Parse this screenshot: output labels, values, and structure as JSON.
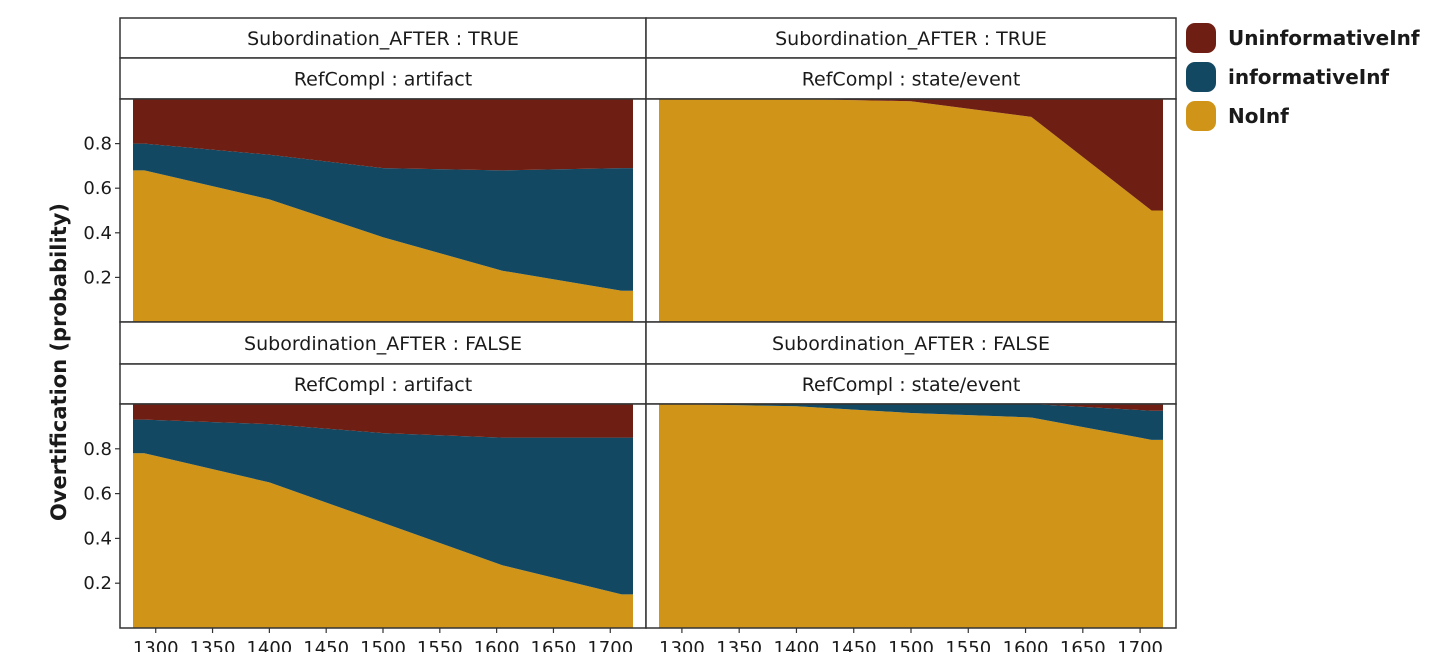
{
  "colors": {
    "UninformativeInf": "#6e1e12",
    "informativeInf": "#134863",
    "NoInf": "#d09518"
  },
  "chart_data": {
    "type": "area",
    "stacked": true,
    "ylabel": "Overtification (probability)",
    "xlim": [
      1280,
      1720
    ],
    "ylim": [
      0,
      1
    ],
    "x_ticks": [
      1300,
      1350,
      1400,
      1450,
      1500,
      1550,
      1600,
      1650,
      1700
    ],
    "y_ticks": [
      0.2,
      0.4,
      0.6,
      0.8
    ],
    "legend": [
      "UninformativeInf",
      "informativeInf",
      "NoInf"
    ],
    "legend_position": "top-right",
    "panels": [
      {
        "strip_top": "Subordination_AFTER : TRUE",
        "strip_bottom": "RefCompl : artifact",
        "series": [
          {
            "name": "NoInf",
            "points": [
              [
                1290,
                0.68
              ],
              [
                1400,
                0.55
              ],
              [
                1500,
                0.38
              ],
              [
                1605,
                0.23
              ],
              [
                1710,
                0.14
              ]
            ]
          },
          {
            "name": "informativeInf",
            "points": [
              [
                1290,
                0.12
              ],
              [
                1400,
                0.2
              ],
              [
                1500,
                0.31
              ],
              [
                1605,
                0.45
              ],
              [
                1710,
                0.55
              ]
            ]
          },
          {
            "name": "UninformativeInf",
            "points": [
              [
                1290,
                0.2
              ],
              [
                1400,
                0.25
              ],
              [
                1500,
                0.31
              ],
              [
                1605,
                0.32
              ],
              [
                1710,
                0.31
              ]
            ]
          }
        ]
      },
      {
        "strip_top": "Subordination_AFTER : TRUE",
        "strip_bottom": "RefCompl : state/event",
        "series": [
          {
            "name": "NoInf",
            "points": [
              [
                1290,
                1.0
              ],
              [
                1400,
                1.0
              ],
              [
                1500,
                0.99
              ],
              [
                1605,
                0.92
              ],
              [
                1710,
                0.5
              ]
            ]
          },
          {
            "name": "informativeInf",
            "points": [
              [
                1290,
                0.0
              ],
              [
                1400,
                0.0
              ],
              [
                1500,
                0.0
              ],
              [
                1605,
                0.0
              ],
              [
                1710,
                0.0
              ]
            ]
          },
          {
            "name": "UninformativeInf",
            "points": [
              [
                1290,
                0.0
              ],
              [
                1400,
                0.0
              ],
              [
                1500,
                0.01
              ],
              [
                1605,
                0.08
              ],
              [
                1710,
                0.5
              ]
            ]
          }
        ]
      },
      {
        "strip_top": "Subordination_AFTER : FALSE",
        "strip_bottom": "RefCompl : artifact",
        "series": [
          {
            "name": "NoInf",
            "points": [
              [
                1290,
                0.78
              ],
              [
                1400,
                0.65
              ],
              [
                1500,
                0.47
              ],
              [
                1605,
                0.28
              ],
              [
                1710,
                0.15
              ]
            ]
          },
          {
            "name": "informativeInf",
            "points": [
              [
                1290,
                0.15
              ],
              [
                1400,
                0.26
              ],
              [
                1500,
                0.4
              ],
              [
                1605,
                0.57
              ],
              [
                1710,
                0.7
              ]
            ]
          },
          {
            "name": "UninformativeInf",
            "points": [
              [
                1290,
                0.07
              ],
              [
                1400,
                0.09
              ],
              [
                1500,
                0.13
              ],
              [
                1605,
                0.15
              ],
              [
                1710,
                0.15
              ]
            ]
          }
        ]
      },
      {
        "strip_top": "Subordination_AFTER : FALSE",
        "strip_bottom": "RefCompl : state/event",
        "series": [
          {
            "name": "NoInf",
            "points": [
              [
                1290,
                1.0
              ],
              [
                1400,
                0.99
              ],
              [
                1500,
                0.96
              ],
              [
                1605,
                0.94
              ],
              [
                1710,
                0.84
              ]
            ]
          },
          {
            "name": "informativeInf",
            "points": [
              [
                1290,
                0.0
              ],
              [
                1400,
                0.01
              ],
              [
                1500,
                0.04
              ],
              [
                1605,
                0.06
              ],
              [
                1710,
                0.13
              ]
            ]
          },
          {
            "name": "UninformativeInf",
            "points": [
              [
                1290,
                0.0
              ],
              [
                1400,
                0.0
              ],
              [
                1500,
                0.0
              ],
              [
                1605,
                0.0
              ],
              [
                1710,
                0.03
              ]
            ]
          }
        ]
      }
    ]
  }
}
